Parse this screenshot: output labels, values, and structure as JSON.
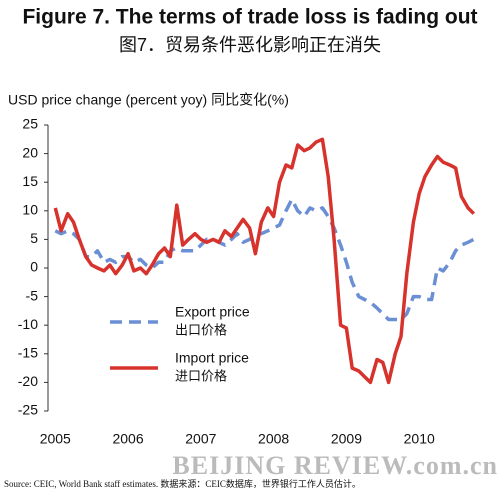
{
  "chart_data": {
    "type": "line",
    "title": "Figure 7. The terms of trade loss is fading out",
    "subtitle": "图7．贸易条件恶化影响正在消失",
    "ylabel": "USD price change (percent yoy) 同比变化(%)",
    "source": "Source: CEIC, World Bank staff estimates.    数据来源：CEIC数据库，世界银行工作人员估计。",
    "watermark": "BEIJING REVIEW.com.cn",
    "xlim": [
      2004.9,
      2011
    ],
    "xticks": [
      2005,
      2006,
      2007,
      2008,
      2009,
      2010
    ],
    "ylim": [
      -25,
      25
    ],
    "yticks": [
      -25,
      -20,
      -15,
      -10,
      -5,
      0,
      5,
      10,
      15,
      20,
      25
    ],
    "grid": false,
    "x": [
      2005,
      2005.08,
      2005.17,
      2005.25,
      2005.33,
      2005.42,
      2005.5,
      2005.58,
      2005.67,
      2005.75,
      2005.83,
      2005.92,
      2006,
      2006.08,
      2006.17,
      2006.25,
      2006.33,
      2006.42,
      2006.5,
      2006.58,
      2006.67,
      2006.75,
      2006.83,
      2006.92,
      2007,
      2007.08,
      2007.17,
      2007.25,
      2007.33,
      2007.42,
      2007.5,
      2007.58,
      2007.67,
      2007.75,
      2007.83,
      2007.92,
      2008,
      2008.08,
      2008.17,
      2008.25,
      2008.33,
      2008.42,
      2008.5,
      2008.58,
      2008.67,
      2008.75,
      2008.83,
      2008.92,
      2009,
      2009.08,
      2009.17,
      2009.25,
      2009.33,
      2009.42,
      2009.5,
      2009.58,
      2009.67,
      2009.75,
      2009.83,
      2009.92,
      2010,
      2010.08,
      2010.17,
      2010.25,
      2010.33,
      2010.42,
      2010.5,
      2010.58,
      2010.67,
      2010.75
    ],
    "series": [
      {
        "name": "Export price",
        "name_cn": "出口价格",
        "color": "#6b8fd4",
        "dashed": true,
        "values": [
          6.5,
          6,
          6.5,
          6,
          5,
          2,
          2,
          3,
          1,
          1.5,
          1,
          2,
          2,
          1,
          1.5,
          0.5,
          0,
          1,
          1,
          3,
          3.5,
          3,
          3,
          3,
          4,
          5,
          5,
          4.5,
          4,
          5,
          6,
          4.5,
          5,
          6,
          6,
          6.5,
          7,
          7.5,
          10,
          12,
          10,
          9,
          10.5,
          10,
          10.5,
          9,
          7,
          4,
          1,
          -2.5,
          -5,
          -5.5,
          -6,
          -7,
          -8,
          -9,
          -9,
          -9,
          -8,
          -5,
          -5,
          -5.5,
          -5.5,
          0,
          -0.5,
          1,
          3,
          4,
          4.5,
          5
        ]
      },
      {
        "name": "Import price",
        "name_cn": "进口价格",
        "color": "#d7322c",
        "dashed": false,
        "values": [
          10.5,
          6.5,
          9.5,
          8,
          5,
          2,
          0.5,
          0,
          -0.5,
          0.5,
          -1,
          0.5,
          2.5,
          -0.5,
          0,
          -1,
          0.5,
          2.5,
          3.5,
          2,
          11,
          4,
          5,
          6,
          5,
          4.5,
          5,
          4.5,
          6.5,
          5.5,
          7,
          8.5,
          7,
          2.5,
          8,
          10.5,
          9,
          15,
          18,
          17.5,
          21.5,
          20.5,
          21,
          22,
          22.5,
          16,
          5,
          -10,
          -10.5,
          -17.5,
          -18,
          -19,
          -20,
          -16,
          -16.5,
          -20,
          -15,
          -12,
          -1,
          8,
          13,
          16,
          18,
          19.5,
          18.5,
          18,
          17.5,
          12.5,
          10.5,
          9.5
        ]
      }
    ]
  }
}
